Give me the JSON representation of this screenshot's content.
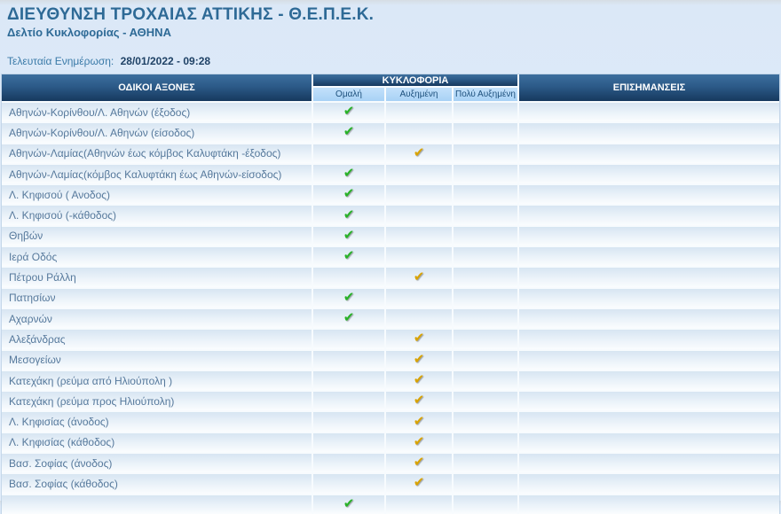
{
  "page": {
    "title": "ΔΙΕΥΘΥΝΣΗ ΤΡΟΧΑΙΑΣ ΑΤΤΙΚΗΣ - Θ.Ε.Π.Ε.Κ.",
    "subtitle": "Δελτίο Κυκλοφορίας - ΑΘΗΝΑ",
    "last_update_label": "Τελευταία Ενημέρωση:",
    "last_update_value": "28/01/2022 - 09:28"
  },
  "table": {
    "columns": {
      "axes": "ΟΔΙΚΟΙ ΑΞΟΝΕΣ",
      "traffic_group": "ΚΥΚΛΟΦΟΡΙΑ",
      "traffic_levels": [
        "Ομαλή",
        "Αυξημένη",
        "Πολύ Αυξημένη"
      ],
      "remarks": "ΕΠΙΣΗΜΑΝΣΕΙΣ"
    },
    "status_icon": "check-icon",
    "check_glyph": "✔",
    "rows": [
      {
        "name": "Αθηνών-Κορίνθου/Λ. Αθηνών (έξοδος)",
        "status": "normal",
        "remarks": ""
      },
      {
        "name": "Αθηνών-Κορίνθου/Λ. Αθηνών (είσοδος)",
        "status": "normal",
        "remarks": ""
      },
      {
        "name": "Αθηνών-Λαμίας(Αθηνών έως κόμβος Καλυφτάκη -έξοδος)",
        "status": "increased",
        "remarks": ""
      },
      {
        "name": "Αθηνών-Λαμίας(κόμβος Καλυφτάκη έως Αθηνών-είσοδος)",
        "status": "normal",
        "remarks": ""
      },
      {
        "name": "Λ. Κηφισού ( Ανοδος)",
        "status": "normal",
        "remarks": ""
      },
      {
        "name": "Λ. Κηφισού (-κάθοδος)",
        "status": "normal",
        "remarks": ""
      },
      {
        "name": "Θηβών",
        "status": "normal",
        "remarks": ""
      },
      {
        "name": "Ιερά Οδός",
        "status": "normal",
        "remarks": ""
      },
      {
        "name": "Πέτρου Ράλλη",
        "status": "increased",
        "remarks": ""
      },
      {
        "name": "Πατησίων",
        "status": "normal",
        "remarks": ""
      },
      {
        "name": "Αχαρνών",
        "status": "normal",
        "remarks": ""
      },
      {
        "name": "Αλεξάνδρας",
        "status": "increased",
        "remarks": ""
      },
      {
        "name": "Μεσογείων",
        "status": "increased",
        "remarks": ""
      },
      {
        "name": "Κατεχάκη (ρεύμα από Ηλιούπολη )",
        "status": "increased",
        "remarks": ""
      },
      {
        "name": "Κατεχάκη (ρεύμα προς Ηλιούπολη)",
        "status": "increased",
        "remarks": ""
      },
      {
        "name": "Λ. Κηφισίας (άνοδος)",
        "status": "increased",
        "remarks": ""
      },
      {
        "name": "Λ. Κηφισίας (κάθοδος)",
        "status": "increased",
        "remarks": ""
      },
      {
        "name": "Βασ. Σοφίας (άνοδος)",
        "status": "increased",
        "remarks": ""
      },
      {
        "name": "Βασ. Σοφίας (κάθοδος)",
        "status": "increased",
        "remarks": ""
      },
      {
        "name": "",
        "status": "normal",
        "remarks": "",
        "partial": true
      }
    ]
  },
  "colors": {
    "accent_text": "#2e6a96",
    "header_bg_top": "#3d6f9e",
    "header_bg_bottom": "#16395e",
    "subheader_bg": "#a8d2f5",
    "normal_check": "#28b228",
    "increased_check": "#d9a300"
  }
}
